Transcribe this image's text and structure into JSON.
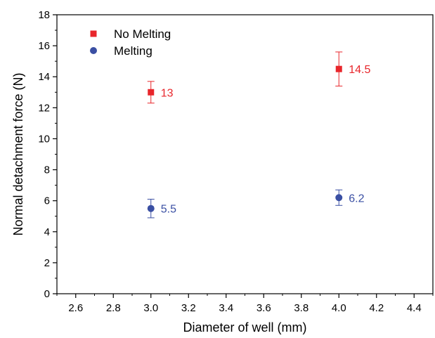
{
  "chart_data": {
    "type": "scatter",
    "xlabel": "Diameter of well (mm)",
    "ylabel": "Normal detachment force (N)",
    "xlim": [
      2.5,
      4.5
    ],
    "ylim": [
      0,
      18
    ],
    "xticks": [
      "2.6",
      "2.8",
      "3.0",
      "3.2",
      "3.4",
      "3.6",
      "3.8",
      "4.0",
      "4.2",
      "4.4"
    ],
    "yticks": [
      "0",
      "2",
      "4",
      "6",
      "8",
      "10",
      "12",
      "14",
      "16",
      "18"
    ],
    "grid": false,
    "legend_position": "top-left",
    "series": [
      {
        "name": "No Melting",
        "marker": "square",
        "color": "#e8262b",
        "points": [
          {
            "x": 3.0,
            "y": 13.0,
            "err_low": 12.3,
            "err_high": 13.7,
            "label": "13"
          },
          {
            "x": 4.0,
            "y": 14.5,
            "err_low": 13.4,
            "err_high": 15.6,
            "label": "14.5"
          }
        ]
      },
      {
        "name": "Melting",
        "marker": "circle",
        "color": "#3a4fa3",
        "points": [
          {
            "x": 3.0,
            "y": 5.5,
            "err_low": 4.9,
            "err_high": 6.1,
            "label": "5.5"
          },
          {
            "x": 4.0,
            "y": 6.2,
            "err_low": 5.7,
            "err_high": 6.7,
            "label": "6.2"
          }
        ]
      }
    ]
  }
}
